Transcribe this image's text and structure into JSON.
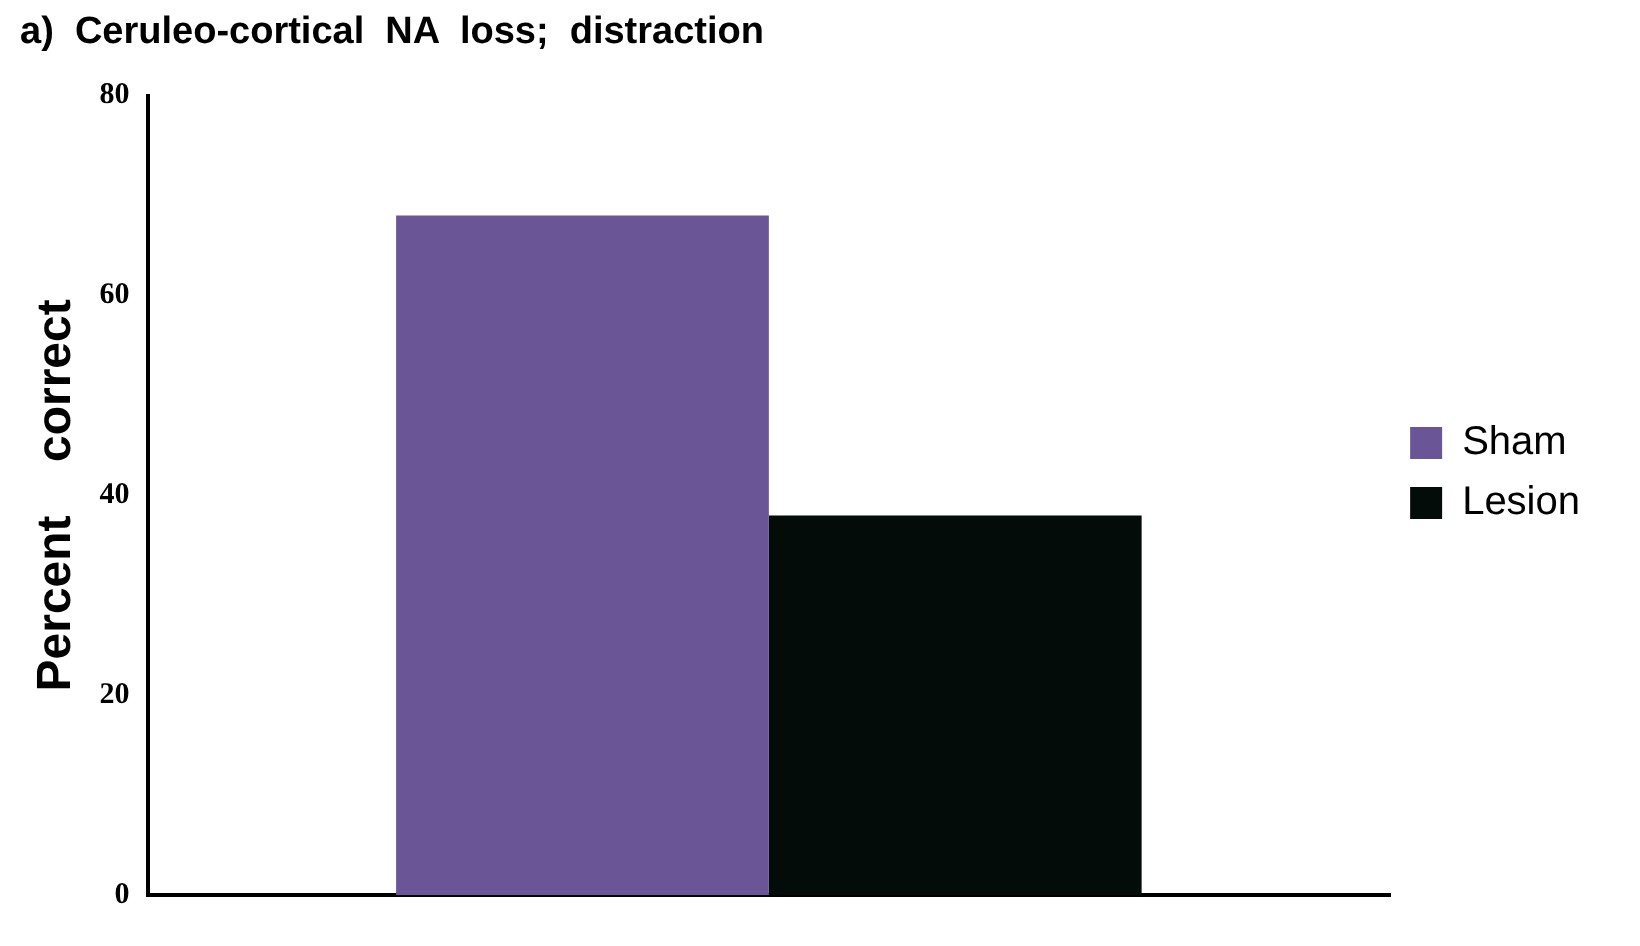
{
  "chart_data": {
    "type": "bar",
    "title": "a)  Ceruleo-cortical  NA  loss;  distraction",
    "ylabel": "Percent    correct",
    "categories": [
      null
    ],
    "series": [
      {
        "name": "Sham",
        "color": "#6a5597",
        "values": [
          68
        ]
      },
      {
        "name": "Lesion",
        "color": "#040c0a",
        "values": [
          38
        ]
      }
    ],
    "ylim": [
      0,
      80
    ],
    "yticks": [
      0,
      20,
      40,
      60,
      80
    ],
    "grid": false,
    "legend": "right"
  }
}
